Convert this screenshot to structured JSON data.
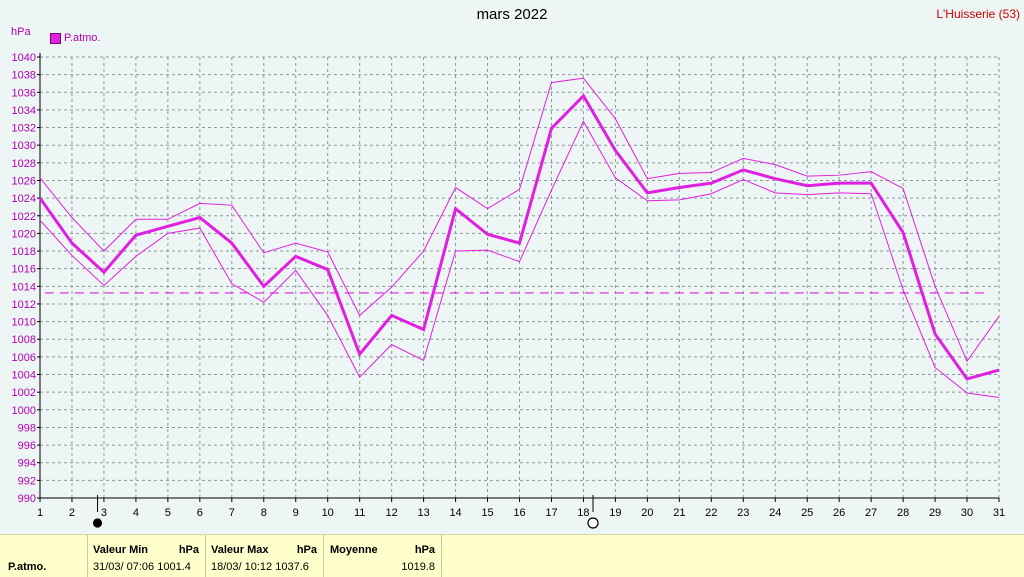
{
  "title": "mars 2022",
  "location": "L'Huisserie (53)",
  "unit_label": "hPa",
  "legend": {
    "label": "P.atmo.",
    "color": "#e020e0"
  },
  "chart_data": {
    "type": "line",
    "x": [
      1,
      2,
      3,
      4,
      5,
      6,
      7,
      8,
      9,
      10,
      11,
      12,
      13,
      14,
      15,
      16,
      17,
      18,
      19,
      20,
      21,
      22,
      23,
      24,
      25,
      26,
      27,
      28,
      29,
      30,
      31
    ],
    "ylim": [
      990,
      1040
    ],
    "yticks": [
      990,
      992,
      994,
      996,
      998,
      1000,
      1002,
      1004,
      1006,
      1008,
      1010,
      1012,
      1014,
      1016,
      1018,
      1020,
      1022,
      1024,
      1026,
      1028,
      1030,
      1032,
      1034,
      1036,
      1038,
      1040
    ],
    "grid": true,
    "legend_position": "top-left",
    "series": [
      {
        "name": "P.atmo.",
        "role": "mean",
        "color": "#e020e0",
        "values": [
          1024.0,
          1018.9,
          1015.6,
          1019.8,
          1020.8,
          1021.8,
          1018.9,
          1014.0,
          1017.4,
          1015.9,
          1006.3,
          1010.7,
          1009.1,
          1022.8,
          1019.9,
          1018.9,
          1031.9,
          1035.6,
          1029.4,
          1024.6,
          1025.2,
          1025.7,
          1027.2,
          1026.2,
          1025.4,
          1025.7,
          1025.7,
          1020.1,
          1008.6,
          1003.5,
          1004.5
        ]
      },
      {
        "role": "max",
        "color": "#e020e0",
        "values": [
          1026.3,
          1021.8,
          1018.0,
          1021.6,
          1021.6,
          1023.4,
          1023.2,
          1017.8,
          1018.9,
          1017.9,
          1010.7,
          1013.9,
          1018.0,
          1025.2,
          1022.8,
          1025.0,
          1037.1,
          1037.6,
          1033.0,
          1026.2,
          1026.8,
          1026.9,
          1028.5,
          1027.8,
          1026.5,
          1026.6,
          1027.0,
          1025.1,
          1014.0,
          1005.5,
          1010.6
        ]
      },
      {
        "role": "min",
        "color": "#e020e0",
        "values": [
          1021.5,
          1017.5,
          1014.1,
          1017.4,
          1020.0,
          1020.6,
          1014.3,
          1012.2,
          1015.8,
          1010.7,
          1003.7,
          1007.4,
          1005.6,
          1018.0,
          1018.1,
          1016.8,
          1024.9,
          1032.7,
          1026.3,
          1023.7,
          1023.8,
          1024.5,
          1026.1,
          1024.6,
          1024.4,
          1024.6,
          1024.5,
          1013.6,
          1004.8,
          1001.9,
          1001.4
        ]
      }
    ],
    "reference_line": {
      "value": 1013.25,
      "style": "dashed",
      "color": "#e020e0"
    },
    "markers": [
      {
        "x": 2.8,
        "symbol": "filled-circle"
      },
      {
        "x": 18.3,
        "symbol": "open-circle"
      }
    ]
  },
  "footer": {
    "param_label": "P.atmo.",
    "min": {
      "label": "Valeur Min",
      "unit": "hPa",
      "value": "31/03/  07:06 1001.4"
    },
    "max": {
      "label": "Valeur Max",
      "unit": "hPa",
      "value": "18/03/  10:12 1037.6"
    },
    "mean": {
      "label": "Moyenne",
      "unit": "hPa",
      "value": "1019.8"
    }
  }
}
